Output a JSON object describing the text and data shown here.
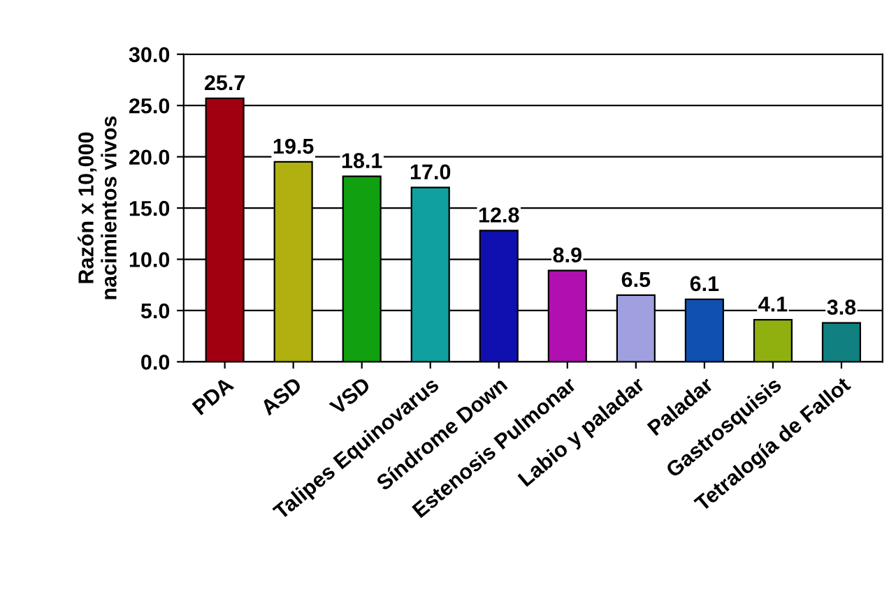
{
  "chart_data": {
    "type": "bar",
    "ylabel": "Razón x 10,000\nnacimientos vivos",
    "categories": [
      "PDA",
      "ASD",
      "VSD",
      "Talipes Equinovarus",
      "Síndrome Down",
      "Estenosis Pulmonar",
      "Labio y paladar",
      "Paladar",
      "Gastrosquisis",
      "Tetralogía de Fallot"
    ],
    "values": [
      25.7,
      19.5,
      18.1,
      17.0,
      12.8,
      8.9,
      6.5,
      6.1,
      4.1,
      3.8
    ],
    "value_labels": [
      "25.7",
      "19.5",
      "18.1",
      "17.0",
      "12.8",
      "8.9",
      "6.5",
      "6.1",
      "4.1",
      "3.8"
    ],
    "colors": [
      "#a00010",
      "#b0b010",
      "#10a010",
      "#10a0a0",
      "#1010b0",
      "#b010b0",
      "#a0a0e0",
      "#1050b0",
      "#90b010",
      "#108080"
    ],
    "ylim": [
      0,
      30
    ],
    "yticks": [
      {
        "value": 0,
        "label": "0.0"
      },
      {
        "value": 5,
        "label": "5.0"
      },
      {
        "value": 10,
        "label": "10.0"
      },
      {
        "value": 15,
        "label": "15.0"
      },
      {
        "value": 20,
        "label": "20.0"
      },
      {
        "value": 25,
        "label": "25.0"
      },
      {
        "value": 30,
        "label": "30.0"
      }
    ],
    "grid": "y",
    "legend": false
  }
}
